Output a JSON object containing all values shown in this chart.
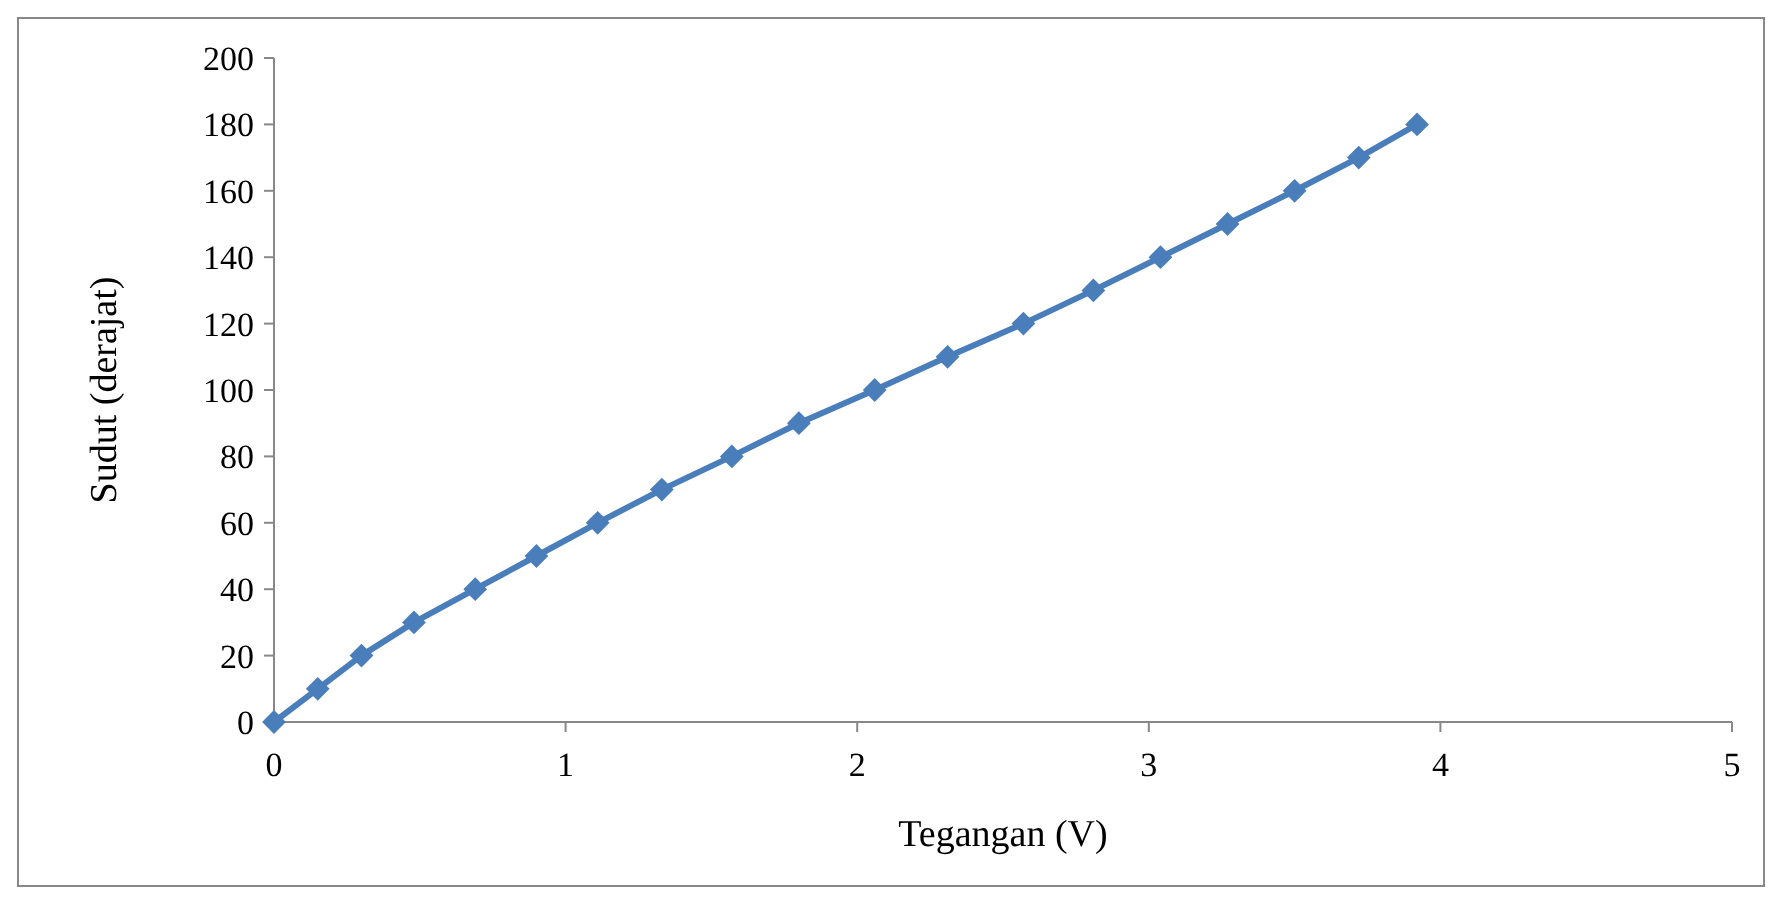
{
  "chart_data": {
    "type": "line",
    "xlabel": "Tegangan (V)",
    "ylabel": "Sudut (derajat)",
    "x": [
      0,
      0.15,
      0.3,
      0.48,
      0.69,
      0.9,
      1.11,
      1.33,
      1.57,
      1.8,
      2.06,
      2.31,
      2.57,
      2.81,
      3.04,
      3.27,
      3.5,
      3.72,
      3.92
    ],
    "series": [
      {
        "color": "#4a7ebb",
        "values": [
          0,
          10,
          20,
          30,
          40,
          50,
          60,
          70,
          80,
          90,
          100,
          110,
          120,
          130,
          140,
          150,
          160,
          170,
          180
        ]
      }
    ],
    "xlim": [
      0,
      5
    ],
    "xticks": [
      0,
      1,
      2,
      3,
      4,
      5
    ],
    "ylim": [
      0,
      200
    ],
    "yticks": [
      0,
      20,
      40,
      60,
      80,
      100,
      120,
      140,
      160,
      180,
      200
    ],
    "marker": "diamond",
    "line_style": "solid"
  }
}
